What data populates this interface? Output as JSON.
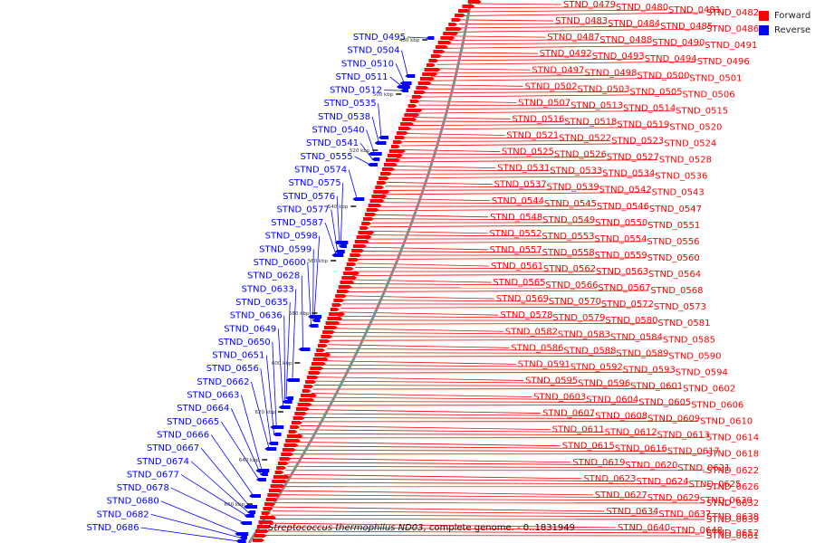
{
  "colors": {
    "forward": "#ff0000",
    "reverse": "#0000ff",
    "backbone": "#8a8a8a",
    "tick": "#000000"
  },
  "legend": {
    "forward_label": "Forward",
    "reverse_label": "Reverse"
  },
  "caption": {
    "organism": "Streptococcus thermophilus ND03",
    "suffix": ", complete genome. - 0..1831949"
  },
  "scale_labels": [
    "480 kbp",
    "500 kbp",
    "520 kbp",
    "540 kbp",
    "560 kbp",
    "580 kbp",
    "600 kbp",
    "620 kbp",
    "640 kbp",
    "660 kbp"
  ],
  "forward_labels": [
    "STND_0479",
    "STND_0480",
    "STND_0481",
    "STND_0482",
    "STND_0483",
    "STND_0484",
    "STND_0485",
    "STND_0486",
    "STND_0487",
    "STND_0488",
    "STND_0490",
    "STND_0491",
    "STND_0492",
    "STND_0493",
    "STND_0494",
    "STND_0496",
    "STND_0497",
    "STND_0498",
    "STND_0500",
    "STND_0501",
    "STND_0502",
    "STND_0503",
    "STND_0505",
    "STND_0506",
    "STND_0507",
    "STND_0513",
    "STND_0514",
    "STND_0515",
    "STND_0516",
    "STND_0518",
    "STND_0519",
    "STND_0520",
    "STND_0521",
    "STND_0522",
    "STND_0523",
    "STND_0524",
    "STND_0525",
    "STND_0526",
    "STND_0527",
    "STND_0528",
    "STND_0531",
    "STND_0533",
    "STND_0534",
    "STND_0536",
    "STND_0537",
    "STND_0539",
    "STND_0542",
    "STND_0543",
    "STND_0544",
    "STND_0545",
    "STND_0546",
    "STND_0547",
    "STND_0548",
    "STND_0549",
    "STND_0550",
    "STND_0551",
    "STND_0552",
    "STND_0553",
    "STND_0554",
    "STND_0556",
    "STND_0557",
    "STND_0558",
    "STND_0559",
    "STND_0560",
    "STND_0561",
    "STND_0562",
    "STND_0563",
    "STND_0564",
    "STND_0565",
    "STND_0566",
    "STND_0567",
    "STND_0568",
    "STND_0569",
    "STND_0570",
    "STND_0572",
    "STND_0573",
    "STND_0578",
    "STND_0579",
    "STND_0580",
    "STND_0581",
    "STND_0582",
    "STND_0583",
    "STND_0584",
    "STND_0585",
    "STND_0586",
    "STND_0588",
    "STND_0589",
    "STND_0590",
    "STND_0591",
    "STND_0592",
    "STND_0593",
    "STND_0594",
    "STND_0595",
    "STND_0596",
    "STND_0601",
    "STND_0602",
    "STND_0603",
    "STND_0604",
    "STND_0605",
    "STND_0606",
    "STND_0607",
    "STND_0608",
    "STND_0609",
    "STND_0610",
    "STND_0611",
    "STND_0612",
    "STND_0613",
    "STND_0614",
    "STND_0615",
    "STND_0616",
    "STND_0617",
    "STND_0618",
    "STND_0619",
    "STND_0620",
    "STND_0621",
    "STND_0622",
    "STND_0623",
    "STND_0624",
    "STND_0625",
    "STND_0626",
    "STND_0627",
    "STND_0629",
    "STND_0630",
    "STND_0632",
    "STND_0634",
    "STND_0637",
    "STND_0638",
    "STND_0639",
    "STND_0640",
    "STND_0648",
    "STND_0652",
    "STND_0661"
  ],
  "reverse_labels": [
    "STND_0495",
    "STND_0504",
    "STND_0510",
    "STND_0511",
    "STND_0512",
    "STND_0535",
    "STND_0538",
    "STND_0540",
    "STND_0541",
    "STND_0555",
    "STND_0574",
    "STND_0575",
    "STND_0576",
    "STND_0577",
    "STND_0587",
    "STND_0598",
    "STND_0599",
    "STND_0600",
    "STND_0628",
    "STND_0633",
    "STND_0635",
    "STND_0636",
    "STND_0649",
    "STND_0650",
    "STND_0651",
    "STND_0656",
    "STND_0662",
    "STND_0663",
    "STND_0664",
    "STND_0665",
    "STND_0666",
    "STND_0667",
    "STND_0674",
    "STND_0677",
    "STND_0678",
    "STND_0680",
    "STND_0682",
    "STND_0686"
  ]
}
